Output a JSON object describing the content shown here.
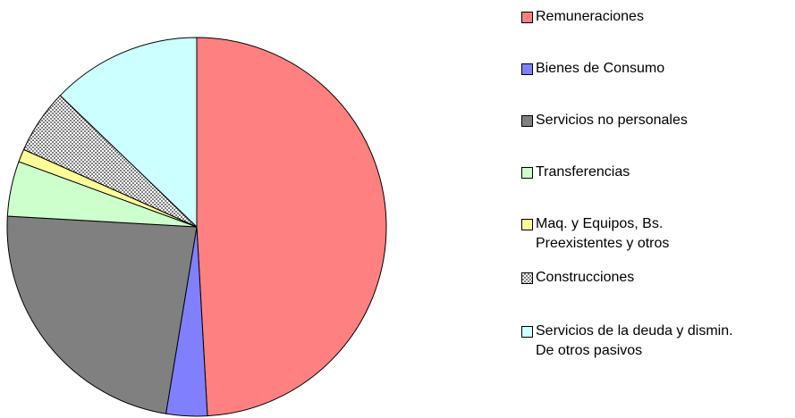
{
  "chart_data": {
    "type": "pie",
    "categories": [
      "Remuneraciones",
      "Bienes de Consumo",
      "Servicios no personales",
      "Transferencias",
      "Maq. y Equipos, Bs. Preexistentes y otros",
      "Construcciones",
      "Servicios de la deuda y dismin. De otros pasivos"
    ],
    "values": [
      49.1,
      3.5,
      23.3,
      4.7,
      1.1,
      5.5,
      12.8
    ],
    "colors": [
      "#FF8080",
      "#8080FF",
      "#808080",
      "#CCFFCC",
      "#FFFF99",
      "#808080",
      "#CCFFFF"
    ],
    "patterns": [
      null,
      null,
      null,
      null,
      null,
      "checker",
      null
    ],
    "legend": "right"
  }
}
